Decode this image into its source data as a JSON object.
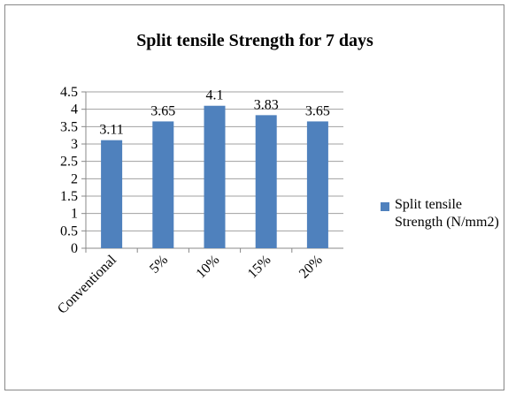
{
  "chart_data": {
    "type": "bar",
    "title": "Split tensile Strength for 7 days",
    "categories": [
      "Conventional",
      "5%",
      "10%",
      "15%",
      "20%"
    ],
    "series": [
      {
        "name": "Split tensile Strength (N/mm2)",
        "color": "#4f81bd",
        "values": [
          3.11,
          3.65,
          4.1,
          3.83,
          3.65
        ]
      }
    ],
    "ylim": [
      0,
      4.5
    ],
    "yticks": [
      0,
      0.5,
      1,
      1.5,
      2,
      2.5,
      3,
      3.5,
      4,
      4.5
    ],
    "grid": true,
    "legend": "right"
  }
}
